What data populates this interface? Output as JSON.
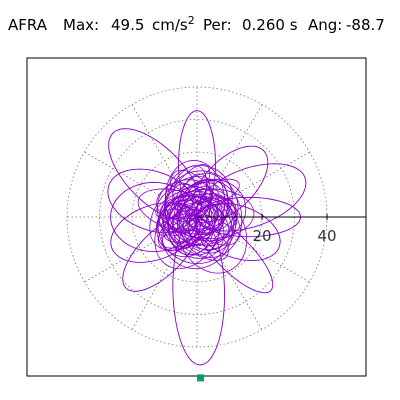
{
  "header": {
    "station": "AFRA",
    "max_label": "Max:",
    "max_value": "49.5",
    "max_unit": "cm/s",
    "max_exponent": "2",
    "per_label": "Per:",
    "per_value": "0.260 s",
    "ang_label": "Ang:",
    "ang_value": "-88.7"
  },
  "chart_data": {
    "type": "scatter",
    "title": "",
    "ring_ticks": [
      20,
      40
    ],
    "ring_values": [
      10,
      20,
      30,
      40
    ],
    "r_max": 40,
    "angular_spokes_deg": [
      0,
      30,
      60,
      90,
      120,
      150,
      180,
      210,
      240,
      270,
      300,
      330
    ],
    "grid": true,
    "trace_color": "#8800cc",
    "marker_color": "#00a070",
    "peak_angle_deg": -88.7,
    "peak_magnitude": 49.5,
    "peak_marker": {
      "x": 1.1,
      "y": -49.5
    },
    "lobe_angles_deg": [
      -88.7,
      90,
      45,
      -45,
      135,
      -135,
      20,
      -20,
      160,
      -160,
      0,
      180
    ]
  }
}
